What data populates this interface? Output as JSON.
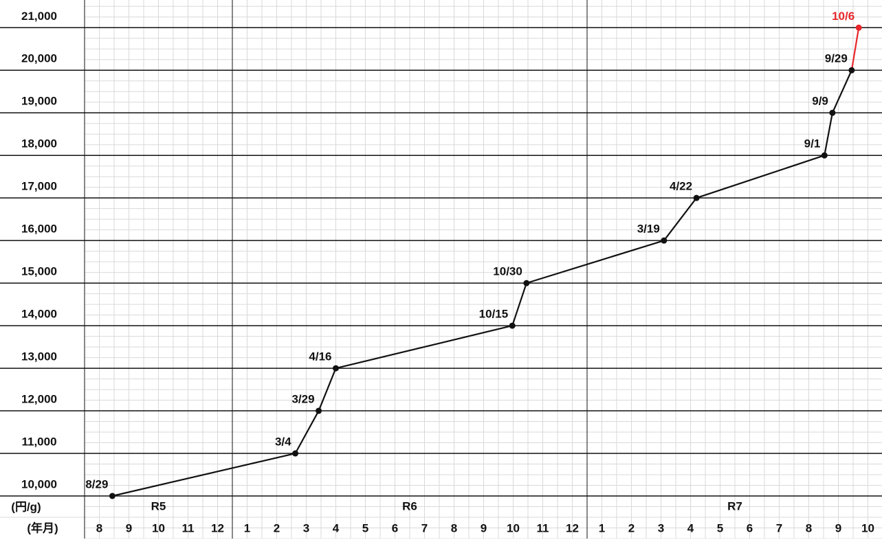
{
  "chart_data": {
    "type": "line",
    "y_unit_label": "(円/g)",
    "x_unit_label": "(年月)",
    "x_groups": [
      {
        "label": "R5",
        "months": [
          8,
          9,
          10,
          11,
          12
        ]
      },
      {
        "label": "R6",
        "months": [
          1,
          2,
          3,
          4,
          5,
          6,
          7,
          8,
          9,
          10,
          11,
          12
        ]
      },
      {
        "label": "R7",
        "months": [
          1,
          2,
          3,
          4,
          5,
          6,
          7,
          8,
          9,
          10
        ]
      }
    ],
    "xlim": [
      0,
      27
    ],
    "ylim": [
      10000,
      21650
    ],
    "yticks": [
      {
        "value": 10000,
        "label": "10,000"
      },
      {
        "value": 11000,
        "label": "11,000"
      },
      {
        "value": 12000,
        "label": "12,000"
      },
      {
        "value": 13000,
        "label": "13,000"
      },
      {
        "value": 14000,
        "label": "14,000"
      },
      {
        "value": 15000,
        "label": "15,000"
      },
      {
        "value": 16000,
        "label": "16,000"
      },
      {
        "value": 17000,
        "label": "17,000"
      },
      {
        "value": 18000,
        "label": "18,000"
      },
      {
        "value": 19000,
        "label": "19,000"
      },
      {
        "value": 20000,
        "label": "20,000"
      },
      {
        "value": 21000,
        "label": "21,000"
      }
    ],
    "grid": true,
    "series": [
      {
        "color": "#111111",
        "point_labels": [
          "8/29",
          "3/4",
          "3/29",
          "4/16",
          "10/15",
          "10/30",
          "3/19",
          "4/22",
          "9/1",
          "9/9",
          "9/29",
          "10/6"
        ],
        "x": [
          0.94,
          7.13,
          7.92,
          8.5,
          14.47,
          14.95,
          19.6,
          20.7,
          25.03,
          25.3,
          25.95,
          26.19
        ],
        "values": [
          10000,
          11000,
          12000,
          13000,
          14000,
          15000,
          16000,
          17000,
          18000,
          19000,
          20000,
          21000
        ],
        "point_colors": [
          "#111111",
          "#111111",
          "#111111",
          "#111111",
          "#111111",
          "#111111",
          "#111111",
          "#111111",
          "#111111",
          "#111111",
          "#111111",
          "#e8262b"
        ]
      }
    ]
  }
}
